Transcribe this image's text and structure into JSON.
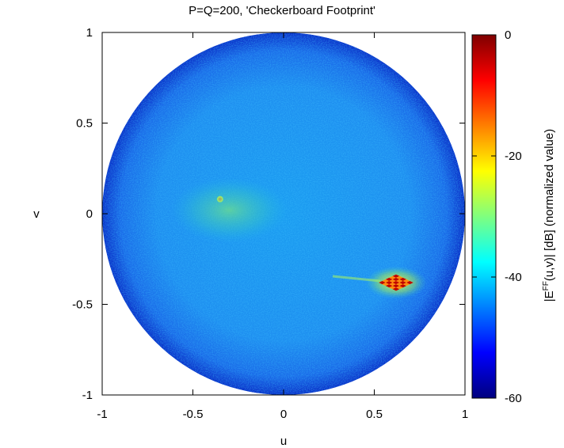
{
  "chart_data": {
    "type": "heatmap",
    "title": "P=Q=200, 'Checkerboard Footprint'",
    "xlabel": "u",
    "ylabel": "v",
    "xlim": [
      -1,
      1
    ],
    "ylim": [
      -1,
      1
    ],
    "x_ticks": [
      {
        "value": -1,
        "label": "-1"
      },
      {
        "value": -0.5,
        "label": "-0.5"
      },
      {
        "value": 0,
        "label": "0"
      },
      {
        "value": 0.5,
        "label": "0.5"
      },
      {
        "value": 1,
        "label": "1"
      }
    ],
    "y_ticks": [
      {
        "value": 1,
        "label": "1"
      },
      {
        "value": 0.5,
        "label": "0.5"
      },
      {
        "value": 0,
        "label": "0"
      },
      {
        "value": -0.5,
        "label": "-0.5"
      },
      {
        "value": -1,
        "label": "-1"
      }
    ],
    "domain": "unit disk u^2 + v^2 <= 1",
    "colorbar": {
      "label_prefix": "|E",
      "label_superscript": "FF",
      "label_suffix": "(u,v)| [dB] (normalized value)",
      "range": [
        -60,
        0
      ],
      "ticks": [
        {
          "value": 0,
          "label": "0"
        },
        {
          "value": -20,
          "label": "-20"
        },
        {
          "value": -40,
          "label": "-40"
        },
        {
          "value": -60,
          "label": "-60"
        }
      ],
      "colormap": [
        "#00007f",
        "#0000ff",
        "#007fff",
        "#00ffff",
        "#7fff7f",
        "#ffff00",
        "#ff7f00",
        "#ff0000",
        "#7f0000"
      ]
    },
    "background_level_db": -45,
    "features": [
      {
        "u": 0.62,
        "v": -0.38,
        "peak_db": 0,
        "shape": "checkerboard diamond"
      },
      {
        "u": -0.35,
        "v": 0.08,
        "peak_db": -25,
        "shape": "point"
      },
      {
        "u": -0.3,
        "v": 0.02,
        "peak_db": -33,
        "shape": "diffuse lobe"
      }
    ]
  }
}
